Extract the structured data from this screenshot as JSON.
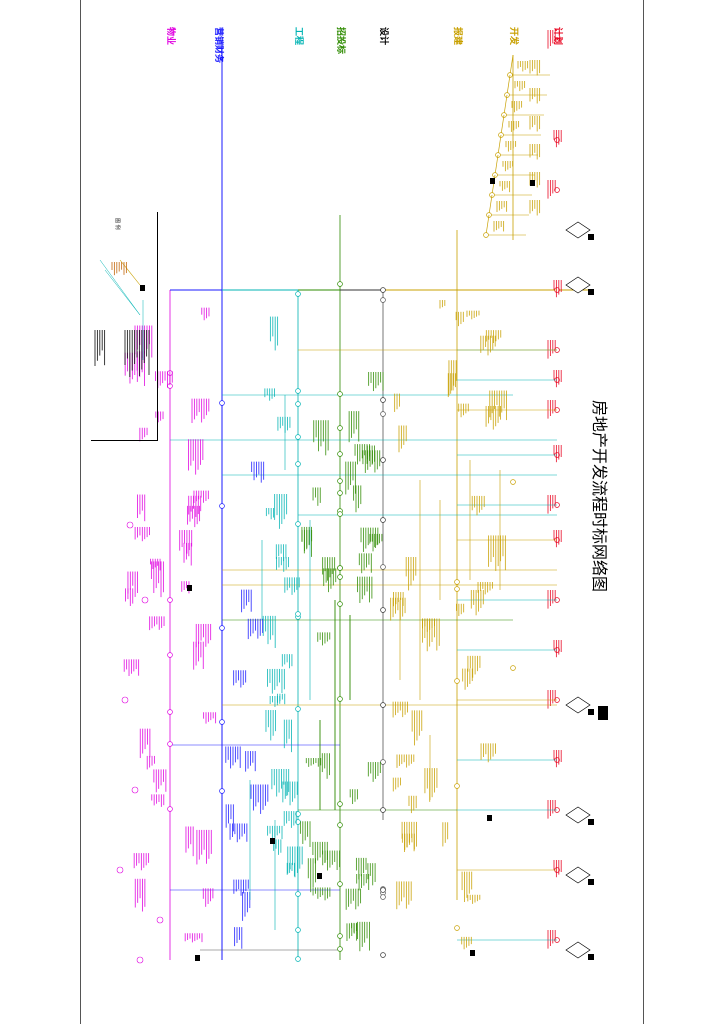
{
  "title": "房地产开发流程时标网络图",
  "lanes": [
    {
      "id": "lane-1",
      "label": "计划",
      "color": "#e8001c"
    },
    {
      "id": "lane-2",
      "label": "开发",
      "color": "#c8a000"
    },
    {
      "id": "lane-3",
      "label": "报建",
      "color": "#c8a000"
    },
    {
      "id": "lane-4",
      "label": "设计",
      "color": "#000000"
    },
    {
      "id": "lane-5",
      "label": "招投标",
      "color": "#2e8b00"
    },
    {
      "id": "lane-6",
      "label": "工程",
      "color": "#00b3b3"
    },
    {
      "id": "lane-7",
      "label": "营销财务",
      "color": "#1a1aff"
    },
    {
      "id": "lane-8",
      "label": "物业",
      "color": "#e000e0"
    }
  ],
  "legend": {
    "title": "图 例"
  },
  "colors": {
    "red": "#e8001c",
    "gold": "#c8a000",
    "black": "#000000",
    "green": "#2e8b00",
    "cyan": "#00b3b3",
    "blue": "#1a1aff",
    "magenta": "#e000e0"
  }
}
